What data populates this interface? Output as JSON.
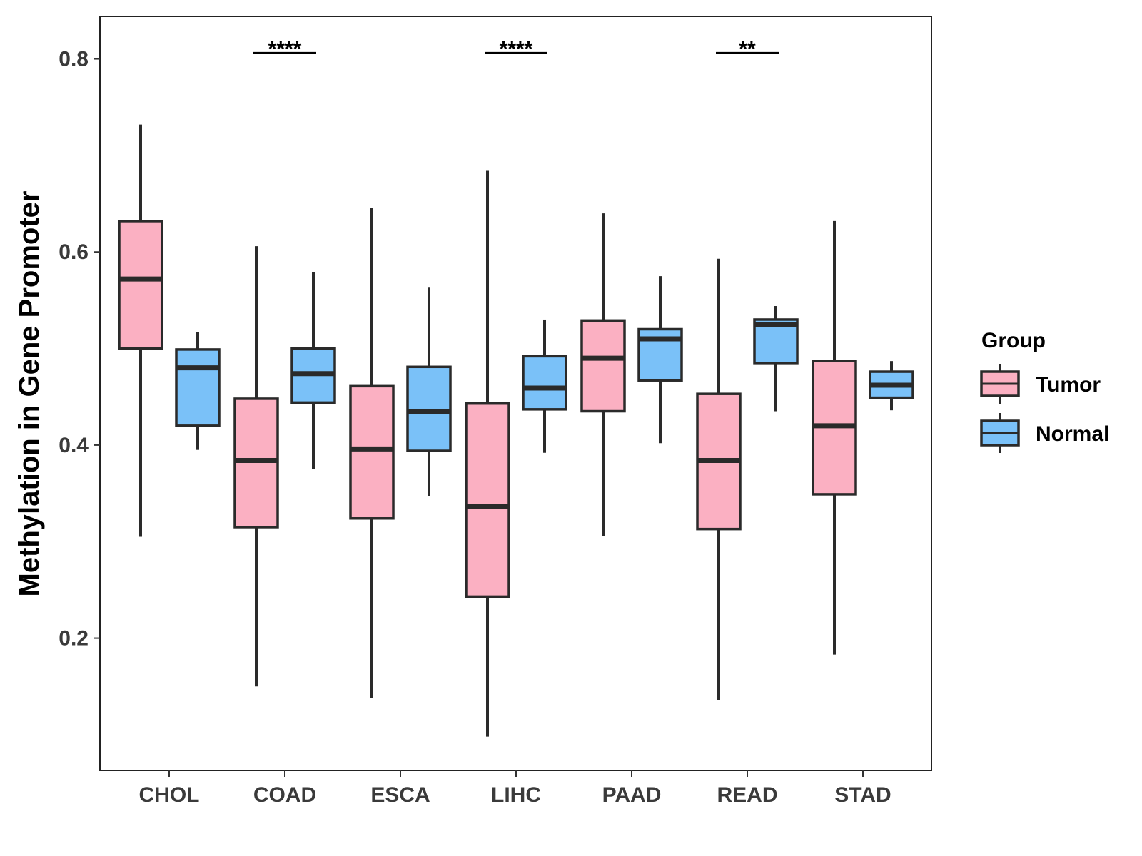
{
  "chart_data": {
    "type": "boxplot",
    "title": "",
    "xlabel": "",
    "ylabel": "Methylation in Gene Promoter",
    "ylim": [
      0.063,
      0.844
    ],
    "yticks": [
      "0.2",
      "0.4",
      "0.6",
      "0.8"
    ],
    "categories": [
      "CHOL",
      "COAD",
      "ESCA",
      "LIHC",
      "PAAD",
      "READ",
      "STAD"
    ],
    "legend": {
      "title": "Group",
      "position": "right",
      "entries": [
        "Tumor",
        "Normal"
      ]
    },
    "colors": {
      "Tumor": "#FBB0C2",
      "Normal": "#7AC1F8",
      "stroke": "#2a2a2a"
    },
    "series": [
      {
        "name": "Tumor",
        "boxes": [
          {
            "category": "CHOL",
            "whisker_low": 0.305,
            "q1": 0.5,
            "median": 0.572,
            "q3": 0.632,
            "whisker_high": 0.732
          },
          {
            "category": "COAD",
            "whisker_low": 0.15,
            "q1": 0.315,
            "median": 0.384,
            "q3": 0.448,
            "whisker_high": 0.606
          },
          {
            "category": "ESCA",
            "whisker_low": 0.138,
            "q1": 0.324,
            "median": 0.396,
            "q3": 0.461,
            "whisker_high": 0.646
          },
          {
            "category": "LIHC",
            "whisker_low": 0.098,
            "q1": 0.243,
            "median": 0.336,
            "q3": 0.443,
            "whisker_high": 0.684
          },
          {
            "category": "PAAD",
            "whisker_low": 0.306,
            "q1": 0.435,
            "median": 0.49,
            "q3": 0.529,
            "whisker_high": 0.64
          },
          {
            "category": "READ",
            "whisker_low": 0.136,
            "q1": 0.313,
            "median": 0.384,
            "q3": 0.453,
            "whisker_high": 0.593
          },
          {
            "category": "STAD",
            "whisker_low": 0.183,
            "q1": 0.349,
            "median": 0.42,
            "q3": 0.487,
            "whisker_high": 0.632
          }
        ]
      },
      {
        "name": "Normal",
        "boxes": [
          {
            "category": "CHOL",
            "whisker_low": 0.395,
            "q1": 0.42,
            "median": 0.48,
            "q3": 0.499,
            "whisker_high": 0.517
          },
          {
            "category": "COAD",
            "whisker_low": 0.375,
            "q1": 0.444,
            "median": 0.474,
            "q3": 0.5,
            "whisker_high": 0.579
          },
          {
            "category": "ESCA",
            "whisker_low": 0.347,
            "q1": 0.394,
            "median": 0.435,
            "q3": 0.481,
            "whisker_high": 0.563
          },
          {
            "category": "LIHC",
            "whisker_low": 0.392,
            "q1": 0.437,
            "median": 0.459,
            "q3": 0.492,
            "whisker_high": 0.53
          },
          {
            "category": "PAAD",
            "whisker_low": 0.402,
            "q1": 0.467,
            "median": 0.51,
            "q3": 0.52,
            "whisker_high": 0.575
          },
          {
            "category": "READ",
            "whisker_low": 0.435,
            "q1": 0.485,
            "median": 0.525,
            "q3": 0.53,
            "whisker_high": 0.544
          },
          {
            "category": "STAD",
            "whisker_low": 0.436,
            "q1": 0.449,
            "median": 0.462,
            "q3": 0.476,
            "whisker_high": 0.487
          }
        ]
      }
    ],
    "annotations": [
      {
        "category": "COAD",
        "label": "****",
        "y": 0.806
      },
      {
        "category": "LIHC",
        "label": "****",
        "y": 0.806
      },
      {
        "category": "READ",
        "label": "**",
        "y": 0.806
      }
    ]
  }
}
